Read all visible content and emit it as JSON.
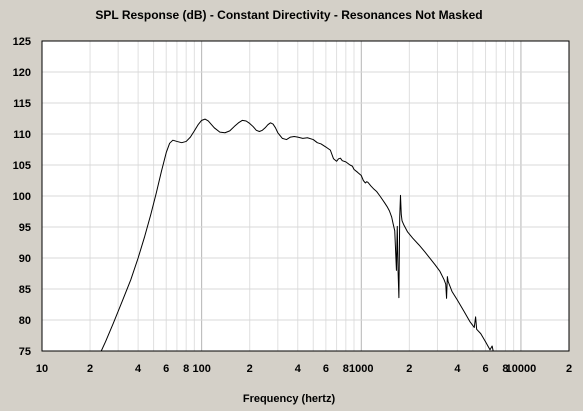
{
  "chart_data": {
    "type": "line",
    "title": "SPL Response (dB) - Constant Directivity - Resonances Not Masked",
    "xlabel": "Frequency (hertz)",
    "ylabel": "",
    "x_scale": "log",
    "xlim": [
      10,
      20000
    ],
    "ylim": [
      75,
      125
    ],
    "grid": true,
    "y_ticks": [
      75,
      80,
      85,
      90,
      95,
      100,
      105,
      110,
      115,
      120,
      125
    ],
    "x_ticks": [
      {
        "value": 10,
        "label": "10"
      },
      {
        "value": 20,
        "label": "2"
      },
      {
        "value": 40,
        "label": "4"
      },
      {
        "value": 60,
        "label": "6"
      },
      {
        "value": 80,
        "label": "8"
      },
      {
        "value": 100,
        "label": "100"
      },
      {
        "value": 200,
        "label": "2"
      },
      {
        "value": 400,
        "label": "4"
      },
      {
        "value": 600,
        "label": "6"
      },
      {
        "value": 800,
        "label": "8"
      },
      {
        "value": 1000,
        "label": "1000"
      },
      {
        "value": 2000,
        "label": "2"
      },
      {
        "value": 4000,
        "label": "4"
      },
      {
        "value": 6000,
        "label": "6"
      },
      {
        "value": 8000,
        "label": "8"
      },
      {
        "value": 10000,
        "label": "10000"
      },
      {
        "value": 20000,
        "label": "2"
      }
    ],
    "series": [
      {
        "color": "#000000",
        "points": [
          [
            23.5,
            75
          ],
          [
            25,
            76.5
          ],
          [
            28,
            79.5
          ],
          [
            32,
            83.2
          ],
          [
            36,
            86.5
          ],
          [
            40,
            90
          ],
          [
            44,
            93.5
          ],
          [
            48,
            97
          ],
          [
            52,
            100.5
          ],
          [
            56,
            104
          ],
          [
            60,
            107
          ],
          [
            63,
            108.5
          ],
          [
            66,
            109
          ],
          [
            70,
            108.8
          ],
          [
            75,
            108.6
          ],
          [
            80,
            108.8
          ],
          [
            85,
            109.5
          ],
          [
            90,
            110.5
          ],
          [
            95,
            111.5
          ],
          [
            100,
            112.2
          ],
          [
            105,
            112.4
          ],
          [
            110,
            112.1
          ],
          [
            120,
            111
          ],
          [
            130,
            110.3
          ],
          [
            140,
            110.2
          ],
          [
            150,
            110.5
          ],
          [
            160,
            111.2
          ],
          [
            170,
            111.8
          ],
          [
            180,
            112.2
          ],
          [
            190,
            112.1
          ],
          [
            200,
            111.7
          ],
          [
            210,
            111.2
          ],
          [
            220,
            110.6
          ],
          [
            230,
            110.4
          ],
          [
            240,
            110.6
          ],
          [
            250,
            111
          ],
          [
            260,
            111.5
          ],
          [
            270,
            111.8
          ],
          [
            280,
            111.6
          ],
          [
            290,
            111
          ],
          [
            300,
            110.2
          ],
          [
            320,
            109.3
          ],
          [
            340,
            109.1
          ],
          [
            360,
            109.5
          ],
          [
            380,
            109.6
          ],
          [
            400,
            109.5
          ],
          [
            430,
            109.3
          ],
          [
            460,
            109.4
          ],
          [
            500,
            109.1
          ],
          [
            530,
            108.6
          ],
          [
            560,
            108.4
          ],
          [
            600,
            107.9
          ],
          [
            640,
            107.4
          ],
          [
            670,
            106
          ],
          [
            700,
            105.6
          ],
          [
            720,
            106
          ],
          [
            740,
            106.1
          ],
          [
            760,
            105.7
          ],
          [
            800,
            105.5
          ],
          [
            850,
            105
          ],
          [
            880,
            104.8
          ],
          [
            900,
            104.3
          ],
          [
            950,
            103.8
          ],
          [
            1000,
            103.3
          ],
          [
            1030,
            102.5
          ],
          [
            1060,
            102.1
          ],
          [
            1080,
            102.3
          ],
          [
            1100,
            102.2
          ],
          [
            1150,
            101.6
          ],
          [
            1200,
            101.1
          ],
          [
            1250,
            100.7
          ],
          [
            1300,
            100.1
          ],
          [
            1350,
            99.5
          ],
          [
            1400,
            98.9
          ],
          [
            1450,
            98.3
          ],
          [
            1500,
            97.6
          ],
          [
            1550,
            96.6
          ],
          [
            1580,
            95.6
          ],
          [
            1620,
            94.4
          ],
          [
            1660,
            88
          ],
          [
            1680,
            95.1
          ],
          [
            1700,
            87.8
          ],
          [
            1720,
            83.6
          ],
          [
            1740,
            96.5
          ],
          [
            1760,
            100.1
          ],
          [
            1780,
            97
          ],
          [
            1800,
            96
          ],
          [
            1850,
            95.3
          ],
          [
            1950,
            94.2
          ],
          [
            2100,
            93.2
          ],
          [
            2300,
            92.1
          ],
          [
            2500,
            91
          ],
          [
            2700,
            89.9
          ],
          [
            2900,
            88.9
          ],
          [
            3100,
            87.9
          ],
          [
            3300,
            86.5
          ],
          [
            3380,
            85.8
          ],
          [
            3420,
            83.5
          ],
          [
            3460,
            87
          ],
          [
            3500,
            86.2
          ],
          [
            3700,
            84.6
          ],
          [
            4000,
            83.2
          ],
          [
            4400,
            81.4
          ],
          [
            4800,
            79.7
          ],
          [
            5100,
            78.8
          ],
          [
            5200,
            80.5
          ],
          [
            5280,
            78.5
          ],
          [
            5600,
            77.8
          ],
          [
            6000,
            76.5
          ],
          [
            6400,
            75.2
          ],
          [
            6600,
            75.8
          ],
          [
            6700,
            75
          ]
        ]
      }
    ]
  }
}
